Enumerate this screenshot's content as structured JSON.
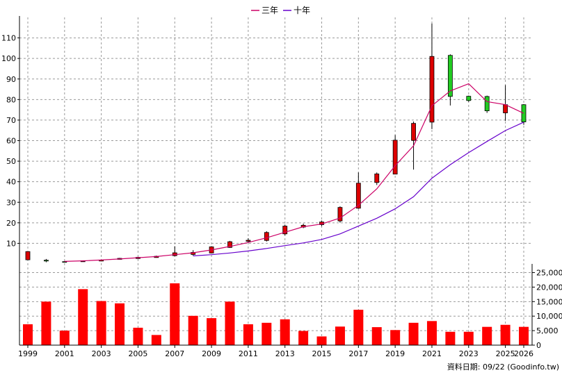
{
  "chart_data": {
    "type": "candlestick",
    "legend": [
      {
        "name": "三年",
        "color": "#cc0066"
      },
      {
        "name": "十年",
        "color": "#6600cc"
      }
    ],
    "footer": "資料日期: 09/22  (Goodinfo.tw)",
    "x_tick_labels": [
      "1999",
      "2001",
      "2003",
      "2005",
      "2007",
      "2009",
      "2011",
      "2013",
      "2015",
      "2017",
      "2019",
      "2021",
      "2023",
      "2025",
      "2026"
    ],
    "price_axis": {
      "ylim": [
        0,
        120
      ],
      "ticks": [
        "10",
        "20",
        "30",
        "40",
        "50",
        "60",
        "70",
        "80",
        "90",
        "100",
        "110"
      ]
    },
    "volume_axis": {
      "ylim": [
        0,
        28000
      ],
      "ticks": [
        "0",
        "5,000",
        "10,000",
        "15,000",
        "20,000",
        "25,000"
      ]
    },
    "candles": [
      {
        "year": 1999,
        "open": 2,
        "close": 6,
        "high": 6,
        "low": 2
      },
      {
        "year": 2000,
        "open": 1.8,
        "close": 1.4,
        "high": 2.4,
        "low": 0.8
      },
      {
        "year": 2001,
        "open": 1.1,
        "close": 1.0,
        "high": 1.3,
        "low": 0.9
      },
      {
        "year": 2002,
        "open": 1.1,
        "close": 1.4,
        "high": 1.6,
        "low": 1.0
      },
      {
        "year": 2003,
        "open": 1.4,
        "close": 1.9,
        "high": 2.1,
        "low": 1.3
      },
      {
        "year": 2004,
        "open": 2.2,
        "close": 2.7,
        "high": 2.9,
        "low": 2.1
      },
      {
        "year": 2005,
        "open": 2.6,
        "close": 3.2,
        "high": 3.4,
        "low": 2.5
      },
      {
        "year": 2006,
        "open": 3.1,
        "close": 3.7,
        "high": 4.0,
        "low": 3.0
      },
      {
        "year": 2007,
        "open": 4.0,
        "close": 5.4,
        "high": 8.6,
        "low": 3.7
      },
      {
        "year": 2008,
        "open": 4.6,
        "close": 5.6,
        "high": 6.7,
        "low": 4.0
      },
      {
        "year": 2009,
        "open": 5.3,
        "close": 8.3,
        "high": 8.6,
        "low": 5.1
      },
      {
        "year": 2010,
        "open": 8.0,
        "close": 10.8,
        "high": 11.2,
        "low": 7.8
      },
      {
        "year": 2011,
        "open": 11.0,
        "close": 11.5,
        "high": 12.5,
        "low": 10.5
      },
      {
        "year": 2012,
        "open": 11.4,
        "close": 15.3,
        "high": 15.9,
        "low": 10.9
      },
      {
        "year": 2013,
        "open": 14.6,
        "close": 18.4,
        "high": 19.1,
        "low": 13.9
      },
      {
        "year": 2014,
        "open": 17.9,
        "close": 18.8,
        "high": 19.6,
        "low": 17.4
      },
      {
        "year": 2015,
        "open": 19.1,
        "close": 20.4,
        "high": 21.1,
        "low": 18.4
      },
      {
        "year": 2016,
        "open": 20.9,
        "close": 27.5,
        "high": 28.0,
        "low": 20.1
      },
      {
        "year": 2017,
        "open": 27.1,
        "close": 39.3,
        "high": 44.5,
        "low": 26.8
      },
      {
        "year": 2018,
        "open": 39.6,
        "close": 43.8,
        "high": 44.5,
        "low": 38.4
      },
      {
        "year": 2019,
        "open": 43.7,
        "close": 60.2,
        "high": 62.7,
        "low": 43.7
      },
      {
        "year": 2020,
        "open": 60.1,
        "close": 68.4,
        "high": 69.3,
        "low": 45.9
      },
      {
        "year": 2021,
        "open": 69.0,
        "close": 101.0,
        "high": 117.0,
        "low": 65.6
      },
      {
        "year": 2022,
        "open": 101.5,
        "close": 81.5,
        "high": 102.0,
        "low": 77.1
      },
      {
        "year": 2023,
        "open": 81.6,
        "close": 79.5,
        "high": 81.9,
        "low": 78.9
      },
      {
        "year": 2024,
        "open": 81.5,
        "close": 74.5,
        "high": 81.9,
        "low": 73.5
      },
      {
        "year": 2025,
        "open": 73.5,
        "close": 77.5,
        "high": 87.0,
        "low": 69.6
      },
      {
        "year": 2026,
        "open": 77.5,
        "close": 69.1,
        "high": 77.8,
        "low": 67.7
      }
    ],
    "series": [
      {
        "name": "三年",
        "x": [
          2001,
          2002,
          2003,
          2004,
          2005,
          2006,
          2007,
          2008,
          2009,
          2010,
          2011,
          2012,
          2013,
          2014,
          2015,
          2016,
          2017,
          2018,
          2019,
          2020,
          2021,
          2022,
          2023,
          2024,
          2025,
          2026
        ],
        "values": [
          1.2,
          1.5,
          1.9,
          2.4,
          3.0,
          3.6,
          4.5,
          5.4,
          6.8,
          8.5,
          10.4,
          12.7,
          15.4,
          18.1,
          19.4,
          22.3,
          28.5,
          36.5,
          47.8,
          57.5,
          77.0,
          84.2,
          87.7,
          79.0,
          77.5,
          73.3
        ]
      },
      {
        "name": "十年",
        "x": [
          2008,
          2009,
          2010,
          2011,
          2012,
          2013,
          2014,
          2015,
          2016,
          2017,
          2018,
          2019,
          2020,
          2021,
          2022,
          2023,
          2024,
          2025,
          2026
        ],
        "values": [
          3.9,
          4.5,
          5.3,
          6.3,
          7.5,
          8.9,
          10.2,
          11.9,
          14.6,
          18.4,
          22.2,
          26.8,
          32.7,
          41.7,
          48.3,
          54.2,
          59.6,
          64.9,
          69.0
        ]
      }
    ],
    "volume": {
      "years": [
        1999,
        2000,
        2001,
        2002,
        2003,
        2004,
        2005,
        2006,
        2007,
        2008,
        2009,
        2010,
        2011,
        2012,
        2013,
        2014,
        2015,
        2016,
        2017,
        2018,
        2019,
        2020,
        2021,
        2022,
        2023,
        2024,
        2025,
        2026
      ],
      "values": [
        7200,
        15000,
        5000,
        19300,
        15200,
        14400,
        6000,
        3500,
        21300,
        10100,
        9300,
        15000,
        7200,
        7700,
        8900,
        4900,
        3000,
        6400,
        12200,
        6200,
        5200,
        7700,
        8300,
        4600,
        4600,
        6300,
        7000,
        6300
      ]
    },
    "colors": {
      "up": "#dd0000",
      "down": "#22cc22",
      "volume": "#ff0000",
      "grid": "#999999"
    }
  }
}
